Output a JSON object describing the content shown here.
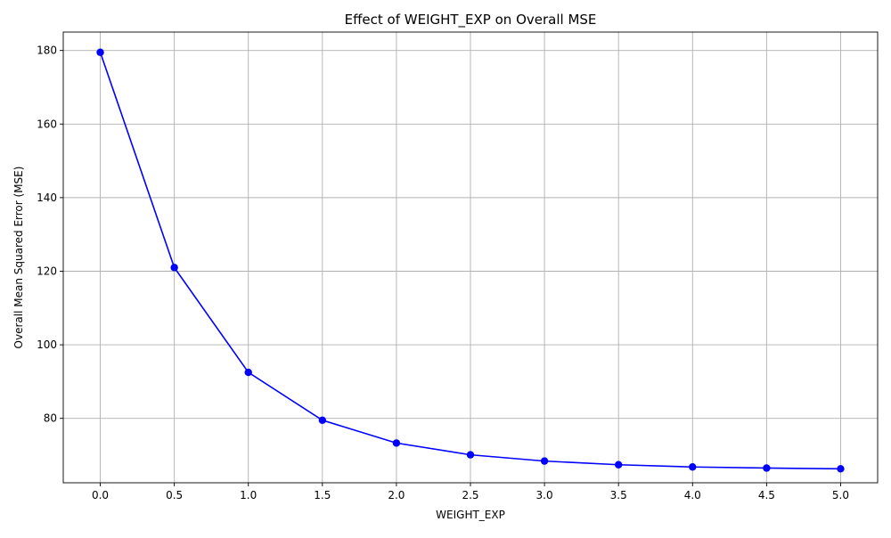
{
  "chart_data": {
    "type": "line",
    "title": "Effect of WEIGHT_EXP on Overall MSE",
    "xlabel": "WEIGHT_EXP",
    "ylabel": "Overall Mean Squared Error (MSE)",
    "x": [
      0.0,
      0.5,
      1.0,
      1.5,
      2.0,
      2.5,
      3.0,
      3.5,
      4.0,
      4.5,
      5.0
    ],
    "x_tick_values": [
      0.0,
      0.5,
      1.0,
      1.5,
      2.0,
      2.5,
      3.0,
      3.5,
      4.0,
      4.5,
      5.0
    ],
    "x_tick_labels": [
      "0.0",
      "0.5",
      "1.0",
      "1.5",
      "2.0",
      "2.5",
      "3.0",
      "3.5",
      "4.0",
      "4.5",
      "5.0"
    ],
    "y_tick_values": [
      80,
      100,
      120,
      140,
      160,
      180
    ],
    "y_tick_labels": [
      "80",
      "100",
      "120",
      "140",
      "160",
      "180"
    ],
    "xlim": [
      -0.25,
      5.25
    ],
    "ylim": [
      62.5,
      185
    ],
    "grid": true,
    "legend": "none",
    "series": [
      {
        "color": "#0000ff",
        "marker": "circle",
        "values": [
          179.5,
          121.0,
          92.5,
          79.5,
          73.3,
          70.1,
          68.4,
          67.4,
          66.8,
          66.5,
          66.3
        ]
      }
    ],
    "colors": {
      "grid": "#b0b0b0",
      "axes": "#000000"
    }
  }
}
